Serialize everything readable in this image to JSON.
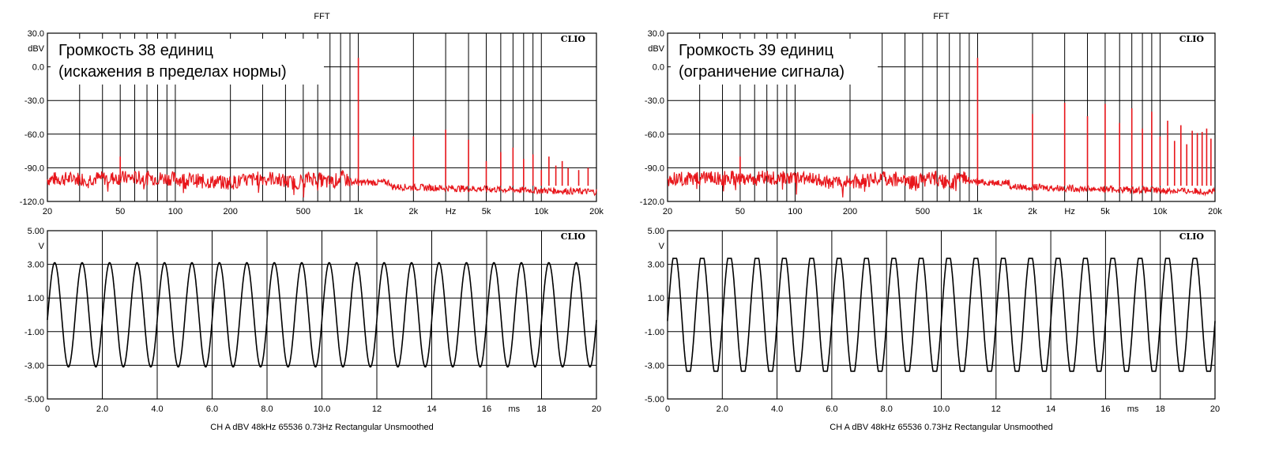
{
  "brand": "CLIO",
  "colors": {
    "spectrum": "#e8161b",
    "waveform": "#000000",
    "grid": "#000000",
    "background": "#ffffff"
  },
  "chart_data": [
    {
      "type": "line",
      "title": "FFT",
      "annotation": [
        "Громкость 38 единиц",
        "(искажения в пределах нормы)"
      ],
      "ylabel": "dBV",
      "xlabel": "Hz",
      "xscale": "log",
      "xlim": [
        20,
        20000
      ],
      "ylim": [
        -120,
        30
      ],
      "yticks": [
        "30.0",
        "0.0",
        "-30.0",
        "-60.0",
        "-90.0",
        "-120.0"
      ],
      "xticks": [
        "20",
        "50",
        "100",
        "200",
        "500",
        "1k",
        "2k",
        "5k",
        "10k",
        "20k"
      ],
      "grid": true,
      "noise_floor_db": -103,
      "harmonics": [
        [
          1000,
          8
        ],
        [
          2000,
          -62
        ],
        [
          3000,
          -56
        ],
        [
          4000,
          -65
        ],
        [
          5000,
          -84
        ],
        [
          6000,
          -76
        ],
        [
          7000,
          -72
        ],
        [
          8000,
          -82
        ],
        [
          9000,
          -78
        ],
        [
          10000,
          -92
        ],
        [
          11000,
          -80
        ],
        [
          12000,
          -88
        ],
        [
          13000,
          -84
        ],
        [
          14000,
          -90
        ],
        [
          16000,
          -92
        ],
        [
          18000,
          -90
        ]
      ]
    },
    {
      "type": "line",
      "title": "FFT",
      "annotation": [
        "Громкость 39 единиц",
        "(ограничение сигнала)"
      ],
      "ylabel": "dBV",
      "xlabel": "Hz",
      "xscale": "log",
      "xlim": [
        20,
        20000
      ],
      "ylim": [
        -120,
        30
      ],
      "yticks": [
        "30.0",
        "0.0",
        "-30.0",
        "-60.0",
        "-90.0",
        "-120.0"
      ],
      "xticks": [
        "20",
        "50",
        "100",
        "200",
        "500",
        "1k",
        "2k",
        "5k",
        "10k",
        "20k"
      ],
      "grid": true,
      "noise_floor_db": -103,
      "harmonics": [
        [
          1000,
          8
        ],
        [
          2000,
          -42
        ],
        [
          3000,
          -32
        ],
        [
          4000,
          -44
        ],
        [
          5000,
          -33
        ],
        [
          6000,
          -50
        ],
        [
          7000,
          -37
        ],
        [
          8000,
          -55
        ],
        [
          9000,
          -40
        ],
        [
          10000,
          -62
        ],
        [
          11000,
          -48
        ],
        [
          12000,
          -66
        ],
        [
          13000,
          -52
        ],
        [
          14000,
          -69
        ],
        [
          15000,
          -57
        ],
        [
          16000,
          -59
        ],
        [
          17000,
          -58
        ],
        [
          18000,
          -55
        ],
        [
          19000,
          -64
        ]
      ]
    },
    {
      "type": "line",
      "ylabel": "V",
      "xlabel": "ms",
      "xlim": [
        0,
        20
      ],
      "ylim": [
        -5,
        5
      ],
      "yticks": [
        "5.00",
        "3.00",
        "1.00",
        "-1.00",
        "-3.00",
        "-5.00"
      ],
      "xticks": [
        "0",
        "2.0",
        "4.0",
        "6.0",
        "8.0",
        "10.0",
        "12",
        "14",
        "16",
        "18",
        "20"
      ],
      "grid": true,
      "frequency_khz": 1.0,
      "amplitude_v": 3.1,
      "clipped": false,
      "footer": "CH A   dBV   48kHz   65536   0.73Hz   Rectangular   Unsmoothed"
    },
    {
      "type": "line",
      "ylabel": "V",
      "xlabel": "ms",
      "xlim": [
        0,
        20
      ],
      "ylim": [
        -5,
        5
      ],
      "yticks": [
        "5.00",
        "3.00",
        "1.00",
        "-1.00",
        "-3.00",
        "-5.00"
      ],
      "xticks": [
        "0",
        "2.0",
        "4.0",
        "6.0",
        "8.0",
        "10.0",
        "12",
        "14",
        "16",
        "18",
        "20"
      ],
      "grid": true,
      "frequency_khz": 1.0,
      "amplitude_v": 3.35,
      "clipped": true,
      "footer": "CH A   dBV   48kHz   65536   0.73Hz   Rectangular   Unsmoothed"
    }
  ]
}
